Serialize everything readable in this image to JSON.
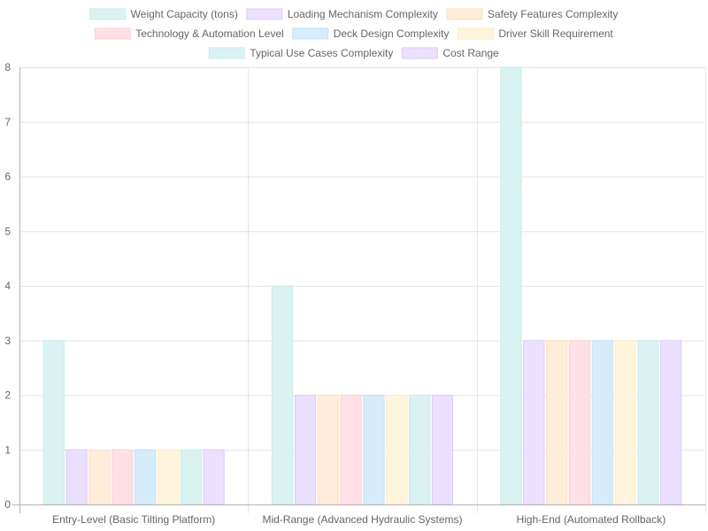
{
  "chart_data": {
    "type": "bar",
    "categories": [
      "Entry-Level (Basic Tilting Platform)",
      "Mid-Range (Advanced Hydraulic Systems)",
      "High-End (Automated Rollback)"
    ],
    "series": [
      {
        "name": "Weight Capacity (tons)",
        "values": [
          3,
          4,
          8
        ],
        "fill": "#dbf2f2",
        "stroke": "#c9ebeb"
      },
      {
        "name": "Loading Mechanism Complexity",
        "values": [
          1,
          2,
          3
        ],
        "fill": "#ebe0ff",
        "stroke": "#dccbff"
      },
      {
        "name": "Safety Features Complexity",
        "values": [
          1,
          2,
          3
        ],
        "fill": "#ffecd9",
        "stroke": "#ffdfbf"
      },
      {
        "name": "Technology & Automation Level",
        "values": [
          1,
          2,
          3
        ],
        "fill": "#ffe0e6",
        "stroke": "#ffcfd9"
      },
      {
        "name": "Deck Design Complexity",
        "values": [
          1,
          2,
          3
        ],
        "fill": "#d7ecfb",
        "stroke": "#c2e1f8"
      },
      {
        "name": "Driver Skill Requirement",
        "values": [
          1,
          2,
          3
        ],
        "fill": "#fff5dd",
        "stroke": "#ffeec4"
      },
      {
        "name": "Typical Use Cases Complexity",
        "values": [
          1,
          2,
          3
        ],
        "fill": "#dbf2f2",
        "stroke": "#c9ebeb"
      },
      {
        "name": "Cost Range",
        "values": [
          1,
          2,
          3
        ],
        "fill": "#ebe0ff",
        "stroke": "#dccbff"
      }
    ],
    "title": "",
    "xlabel": "",
    "ylabel": "",
    "ylim": [
      0,
      8
    ],
    "y_ticks": [
      0,
      1,
      2,
      3,
      4,
      5,
      6,
      7,
      8
    ],
    "grid": true,
    "legend_position": "top-center"
  },
  "colors": {
    "grid": "#e6e6e6",
    "axis": "#b3b3b3",
    "text": "#666666"
  }
}
